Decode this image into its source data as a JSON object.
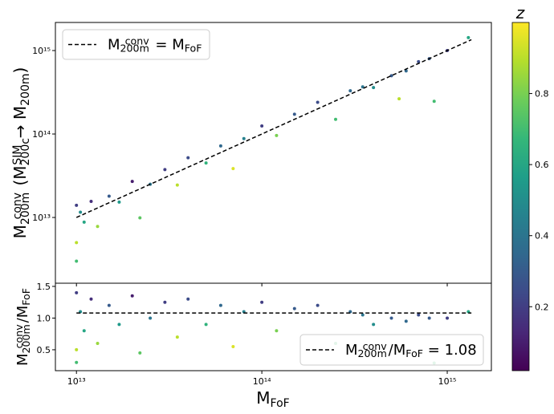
{
  "chart_data": [
    {
      "type": "scatter",
      "colormap": "viridis",
      "log_x": true,
      "log_y": true,
      "grid": false,
      "xlim": [
        7700000000000.0,
        1730000000000000.0
      ],
      "ylim": [
        1630000000000.0,
        2170000000000000.0
      ],
      "xticks": [
        {
          "value": 10000000000000.0,
          "label": "10¹³"
        },
        {
          "value": 100000000000000.0,
          "label": "10¹⁴"
        },
        {
          "value": 1000000000000000.0,
          "label": "10¹⁵"
        }
      ],
      "yticks": [
        {
          "value": 10000000000000.0,
          "label": "10¹³"
        },
        {
          "value": 100000000000000.0,
          "label": "10¹⁴"
        },
        {
          "value": 1000000000000000.0,
          "label": "10¹⁵"
        }
      ],
      "ylabel_parts": [
        "M",
        "200m",
        "conv",
        "  (M",
        "200c",
        "SIM",
        " → M",
        "200m",
        ")"
      ],
      "x": [
        10000000000000.0,
        10000000000000.0,
        10000000000000.0,
        10500000000000.0,
        11000000000000.0,
        12000000000000.0,
        13000000000000.0,
        15000000000000.0,
        17000000000000.0,
        20000000000000.0,
        22000000000000.0,
        25000000000000.0,
        30000000000000.0,
        35000000000000.0,
        40000000000000.0,
        50000000000000.0,
        60000000000000.0,
        70000000000000.0,
        80000000000000.0,
        100000000000000.0,
        120000000000000.0,
        150000000000000.0,
        200000000000000.0,
        250000000000000.0,
        300000000000000.0,
        350000000000000.0,
        400000000000000.0,
        500000000000000.0,
        600000000000000.0,
        700000000000000.0,
        800000000000000.0,
        1000000000000000.0,
        1300000000000000.0,
        550000000000000.0,
        850000000000000.0
      ],
      "values": [
        14000000000000.0,
        5000000000000.0,
        3000000000000.0,
        11550000000000.0,
        8800000000000.0,
        15600000000000.0,
        7800000000000.0,
        18000000000000.0,
        15300000000000.0,
        27000000000000.0,
        9900000000000.0,
        25000000000000.0,
        37500000000000.0,
        24500000000000.0,
        52000000000000.0,
        45000000000000.0,
        72000000000000.0,
        38500000000000.0,
        88000000000000.0,
        125000000000000.0,
        96000000000000.0,
        172500000000000.0,
        240000000000000.0,
        150000000000000.0,
        330000000000000.0,
        367500000000000.0,
        360000000000000.0,
        500000000000000.0,
        570000000000000.0,
        735000000000000.0,
        800000000000000.0,
        1000000000000000.0,
        1430000000000000.0,
        264000000000000.0,
        246500000000000.0
      ],
      "c": [
        0.2,
        0.9,
        0.7,
        0.5,
        0.6,
        0.15,
        0.85,
        0.3,
        0.55,
        0.1,
        0.75,
        0.4,
        0.2,
        0.9,
        0.25,
        0.65,
        0.35,
        0.95,
        0.45,
        0.2,
        0.8,
        0.3,
        0.25,
        0.7,
        0.35,
        0.4,
        0.5,
        0.3,
        0.35,
        0.25,
        0.3,
        0.2,
        0.6,
        0.9,
        0.7
      ],
      "lines": [
        {
          "name_parts": [
            "M",
            "200m",
            "conv",
            " = M",
            "FoF"
          ],
          "color": "#000000",
          "dashed": true,
          "x": [
            10000000000000.0,
            1350000000000000.0
          ],
          "values": [
            10000000000000.0,
            1350000000000000.0
          ]
        }
      ],
      "colorbar": {
        "label": "z",
        "lim": [
          0.02,
          1.0
        ],
        "ticks": [
          0.2,
          0.4,
          0.6,
          0.8
        ]
      }
    },
    {
      "type": "scatter",
      "colormap": "viridis",
      "log_x": true,
      "log_y": false,
      "grid": false,
      "xlim": [
        7700000000000.0,
        1730000000000000.0
      ],
      "ylim": [
        0.17,
        1.55
      ],
      "xticks": [
        {
          "value": 10000000000000.0,
          "label": "10¹³"
        },
        {
          "value": 100000000000000.0,
          "label": "10¹⁴"
        },
        {
          "value": 1000000000000000.0,
          "label": "10¹⁵"
        }
      ],
      "yticks": [
        0.5,
        {
          "value": 1,
          "label": "1.0"
        },
        1.5
      ],
      "xlabel_parts": [
        "M",
        "FoF"
      ],
      "ylabel_parts": [
        "M",
        "200m",
        "conv",
        "/M",
        "FoF"
      ],
      "x": [
        10000000000000.0,
        10000000000000.0,
        10000000000000.0,
        10500000000000.0,
        11000000000000.0,
        12000000000000.0,
        13000000000000.0,
        15000000000000.0,
        17000000000000.0,
        20000000000000.0,
        22000000000000.0,
        25000000000000.0,
        30000000000000.0,
        35000000000000.0,
        40000000000000.0,
        50000000000000.0,
        60000000000000.0,
        70000000000000.0,
        80000000000000.0,
        100000000000000.0,
        120000000000000.0,
        150000000000000.0,
        200000000000000.0,
        250000000000000.0,
        300000000000000.0,
        350000000000000.0,
        400000000000000.0,
        500000000000000.0,
        600000000000000.0,
        700000000000000.0,
        800000000000000.0,
        1000000000000000.0,
        1300000000000000.0,
        550000000000000.0,
        850000000000000.0
      ],
      "values": [
        1.4,
        0.5,
        0.3,
        1.1,
        0.8,
        1.3,
        0.6,
        1.2,
        0.9,
        1.35,
        0.45,
        1.0,
        1.25,
        0.7,
        1.3,
        0.9,
        1.2,
        0.55,
        1.1,
        1.25,
        0.8,
        1.15,
        1.2,
        0.6,
        1.1,
        1.05,
        0.9,
        1.0,
        0.95,
        1.05,
        1.0,
        1.0,
        1.1,
        0.48,
        0.29
      ],
      "c": [
        0.2,
        0.9,
        0.7,
        0.5,
        0.6,
        0.15,
        0.85,
        0.3,
        0.55,
        0.1,
        0.75,
        0.4,
        0.2,
        0.9,
        0.25,
        0.65,
        0.35,
        0.95,
        0.45,
        0.2,
        0.8,
        0.3,
        0.25,
        0.7,
        0.35,
        0.4,
        0.5,
        0.3,
        0.35,
        0.25,
        0.3,
        0.2,
        0.6,
        0.9,
        0.7
      ],
      "lines": [
        {
          "name_parts": [
            "M",
            "200m",
            "conv",
            "/M",
            "FoF",
            " = "
          ],
          "color": "#000000",
          "dashed": true,
          "x": [
            10000000000000.0,
            1350000000000000.0
          ],
          "values": [
            1.08,
            1.08
          ]
        }
      ]
    }
  ]
}
